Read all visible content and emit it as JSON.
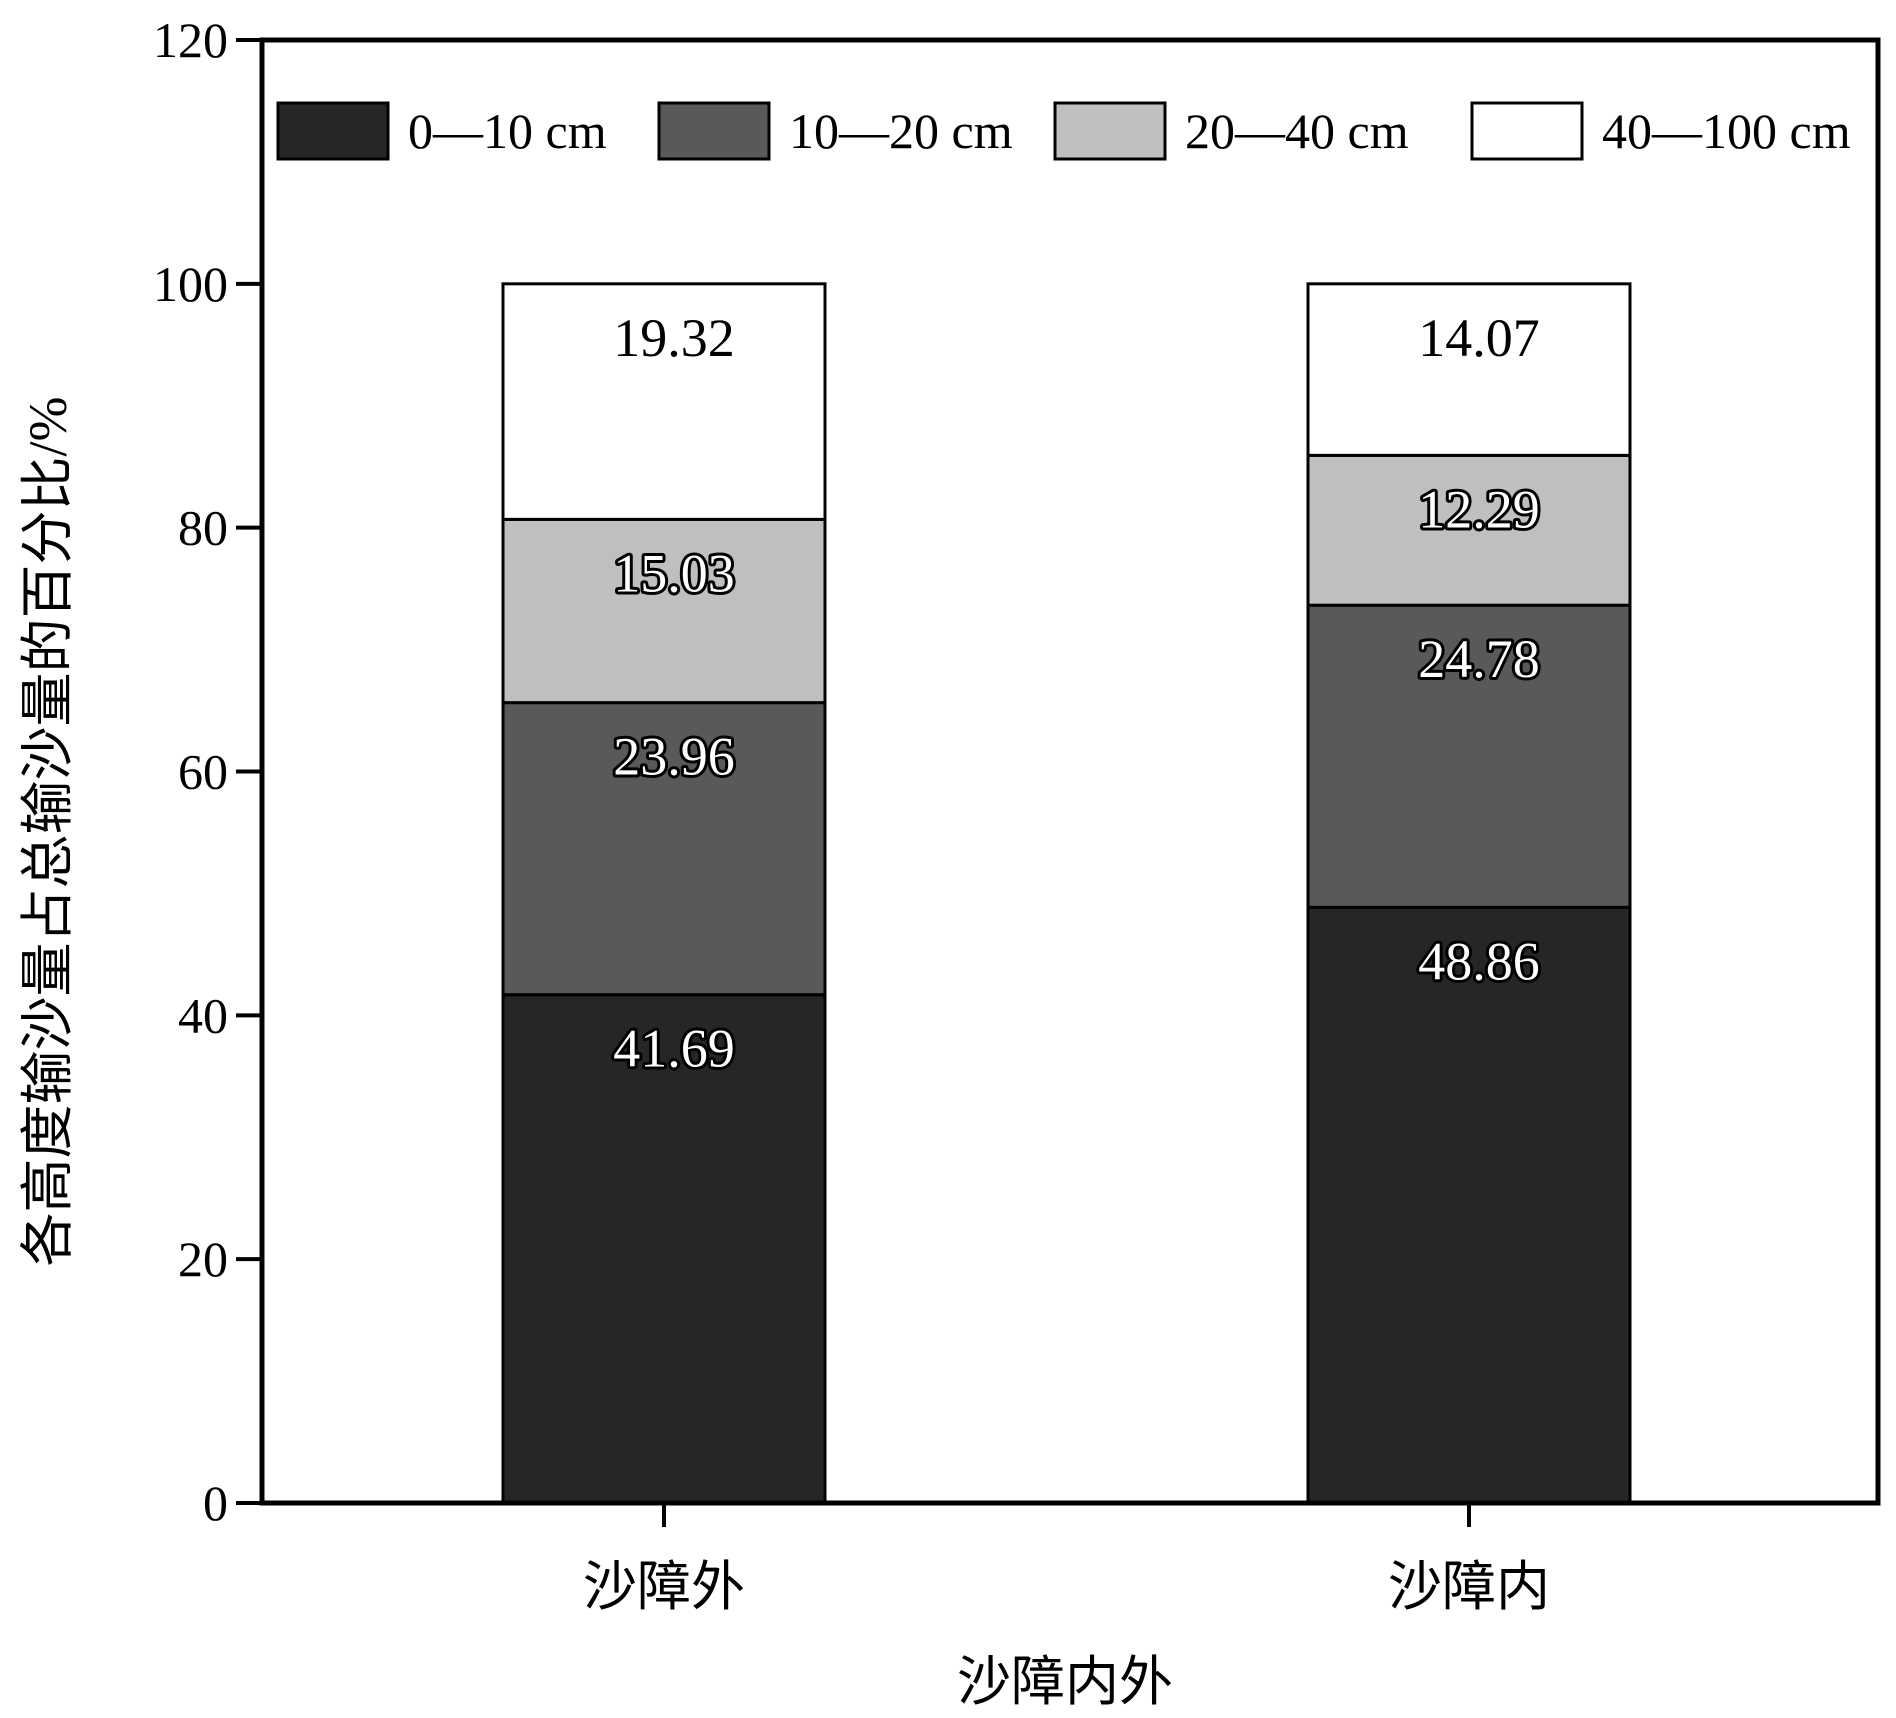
{
  "chart_data": {
    "type": "bar",
    "stacked": true,
    "categories": [
      "沙障外",
      "沙障内"
    ],
    "series": [
      {
        "name": "0—10 cm",
        "color": "#262626",
        "values": [
          41.69,
          48.86
        ]
      },
      {
        "name": "10—20 cm",
        "color": "#595959",
        "values": [
          23.96,
          24.78
        ]
      },
      {
        "name": "20—40 cm",
        "color": "#bfbfbf",
        "values": [
          15.03,
          12.29
        ]
      },
      {
        "name": "40—100 cm",
        "color": "#ffffff",
        "values": [
          19.32,
          14.07
        ]
      }
    ],
    "xlabel": "沙障内外",
    "ylabel": "各高度输沙量占总输沙量的百分比/%",
    "ylim": [
      0,
      120
    ],
    "yticks": [
      0,
      20,
      40,
      60,
      80,
      100,
      120
    ],
    "grid": false,
    "legend_position": "top"
  }
}
